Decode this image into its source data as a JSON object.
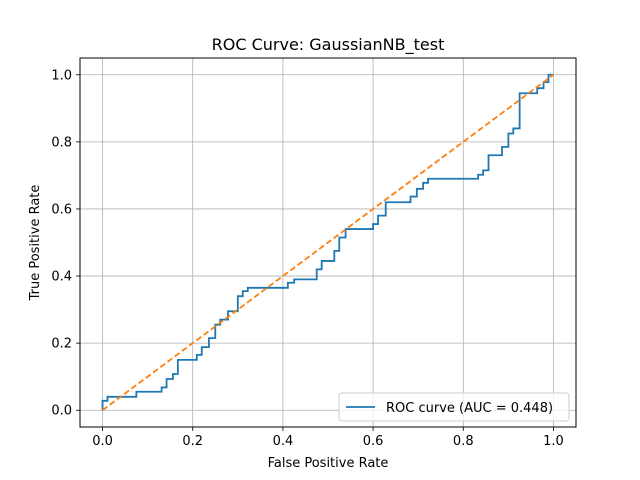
{
  "chart_data": {
    "type": "line",
    "title": "ROC Curve: GaussianNB_test",
    "xlabel": "False Positive Rate",
    "ylabel": "True Positive Rate",
    "xlim": [
      -0.05,
      1.05
    ],
    "ylim": [
      -0.05,
      1.05
    ],
    "grid": true,
    "legend_position": "lower-right",
    "xticks": [
      "0.0",
      "0.2",
      "0.4",
      "0.6",
      "0.8",
      "1.0"
    ],
    "yticks": [
      "0.0",
      "0.2",
      "0.4",
      "0.6",
      "0.8",
      "1.0"
    ],
    "series": [
      {
        "name": "ROC curve (AUC = 0.448)",
        "color": "#1f77b4",
        "style": "solid",
        "x": [
          0.0,
          0.0,
          0.011,
          0.011,
          0.075,
          0.075,
          0.131,
          0.131,
          0.142,
          0.142,
          0.156,
          0.156,
          0.167,
          0.167,
          0.209,
          0.209,
          0.22,
          0.22,
          0.236,
          0.236,
          0.25,
          0.25,
          0.261,
          0.261,
          0.278,
          0.278,
          0.3,
          0.3,
          0.311,
          0.311,
          0.322,
          0.322,
          0.411,
          0.411,
          0.425,
          0.425,
          0.475,
          0.475,
          0.486,
          0.486,
          0.514,
          0.514,
          0.525,
          0.525,
          0.539,
          0.539,
          0.6,
          0.6,
          0.611,
          0.611,
          0.628,
          0.628,
          0.683,
          0.683,
          0.697,
          0.697,
          0.711,
          0.711,
          0.722,
          0.722,
          0.833,
          0.833,
          0.844,
          0.844,
          0.856,
          0.856,
          0.886,
          0.886,
          0.9,
          0.9,
          0.911,
          0.911,
          0.925,
          0.925,
          0.964,
          0.964,
          0.978,
          0.978,
          0.989,
          0.989,
          1.0
        ],
        "y": [
          0.0,
          0.028,
          0.028,
          0.04,
          0.04,
          0.055,
          0.055,
          0.068,
          0.068,
          0.093,
          0.093,
          0.108,
          0.108,
          0.15,
          0.15,
          0.165,
          0.165,
          0.188,
          0.188,
          0.215,
          0.215,
          0.255,
          0.255,
          0.27,
          0.27,
          0.295,
          0.295,
          0.34,
          0.34,
          0.355,
          0.355,
          0.365,
          0.365,
          0.38,
          0.38,
          0.39,
          0.39,
          0.42,
          0.42,
          0.445,
          0.445,
          0.475,
          0.475,
          0.515,
          0.515,
          0.54,
          0.54,
          0.555,
          0.555,
          0.58,
          0.58,
          0.62,
          0.62,
          0.637,
          0.637,
          0.66,
          0.66,
          0.678,
          0.678,
          0.69,
          0.69,
          0.702,
          0.702,
          0.715,
          0.715,
          0.76,
          0.76,
          0.785,
          0.785,
          0.825,
          0.825,
          0.84,
          0.84,
          0.945,
          0.945,
          0.96,
          0.96,
          0.978,
          0.978,
          1.0,
          1.0
        ]
      },
      {
        "color": "#ff7f0e",
        "style": "dashed",
        "x": [
          0.0,
          1.0
        ],
        "y": [
          0.0,
          1.0
        ]
      }
    ]
  }
}
